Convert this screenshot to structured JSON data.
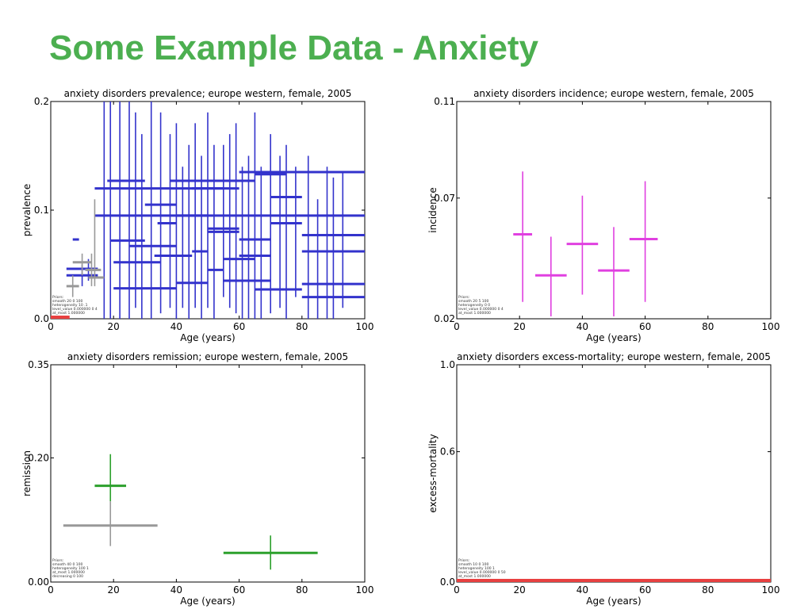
{
  "slide": {
    "title": "Some Example Data - Anxiety",
    "title_color": "#4caf50"
  },
  "chart_data": [
    {
      "type": "scatter",
      "title": "anxiety disorders prevalence; europe western, female, 2005",
      "xlabel": "Age (years)",
      "ylabel": "prevalence",
      "xlim": [
        0,
        100
      ],
      "ylim": [
        0,
        0.2
      ],
      "xticks": [
        "0",
        "20",
        "40",
        "60",
        "80",
        "100"
      ],
      "yticks": [
        "0.0",
        "0.1",
        "0.2"
      ],
      "grid": false,
      "priors_text": [
        "Priors:",
        "smooth 20 0 100",
        "heterogeneity 10 .1",
        "level_value 0.000000 0 4",
        "at_most 1.000000"
      ],
      "series": [
        {
          "color": "#3333cc",
          "points": [
            {
              "x": 17,
              "y": 0.12,
              "x0": 14,
              "x1": 60,
              "y0": 0,
              "y1": 0.2
            },
            {
              "x": 19,
              "y": 0.095,
              "x0": 14,
              "x1": 100,
              "y0": 0,
              "y1": 0.2
            },
            {
              "x": 22,
              "y": 0.072,
              "x0": 19,
              "x1": 30,
              "y0": 0,
              "y1": 0.2
            },
            {
              "x": 25,
              "y": 0.127,
              "x0": 18,
              "x1": 30,
              "y0": 0,
              "y1": 0.2
            },
            {
              "x": 27,
              "y": 0.052,
              "x0": 20,
              "x1": 35,
              "y0": 0.01,
              "y1": 0.19
            },
            {
              "x": 29,
              "y": 0.028,
              "x0": 20,
              "x1": 40,
              "y0": 0,
              "y1": 0.17
            },
            {
              "x": 32,
              "y": 0.067,
              "x0": 25,
              "x1": 40,
              "y0": 0,
              "y1": 0.2
            },
            {
              "x": 35,
              "y": 0.105,
              "x0": 30,
              "x1": 40,
              "y0": 0.005,
              "y1": 0.19
            },
            {
              "x": 38,
              "y": 0.088,
              "x0": 34,
              "x1": 40,
              "y0": 0.01,
              "y1": 0.17
            },
            {
              "x": 40,
              "y": 0.058,
              "x0": 33,
              "x1": 45,
              "y0": 0,
              "y1": 0.18
            },
            {
              "x": 42,
              "y": 0.127,
              "x0": 38,
              "x1": 60,
              "y0": 0.01,
              "y1": 0.14
            },
            {
              "x": 44,
              "y": 0.033,
              "x0": 40,
              "x1": 50,
              "y0": 0,
              "y1": 0.16
            },
            {
              "x": 46,
              "y": 0.095,
              "x0": 40,
              "x1": 50,
              "y0": 0.01,
              "y1": 0.18
            },
            {
              "x": 48,
              "y": 0.062,
              "x0": 45,
              "x1": 50,
              "y0": 0,
              "y1": 0.15
            },
            {
              "x": 50,
              "y": 0.12,
              "x0": 45,
              "x1": 55,
              "y0": 0.01,
              "y1": 0.19
            },
            {
              "x": 52,
              "y": 0.045,
              "x0": 50,
              "x1": 55,
              "y0": 0,
              "y1": 0.16
            },
            {
              "x": 55,
              "y": 0.083,
              "x0": 50,
              "x1": 60,
              "y0": 0.02,
              "y1": 0.16
            },
            {
              "x": 57,
              "y": 0.08,
              "x0": 50,
              "x1": 60,
              "y0": 0.01,
              "y1": 0.17
            },
            {
              "x": 59,
              "y": 0.127,
              "x0": 50,
              "x1": 65,
              "y0": 0.005,
              "y1": 0.18
            },
            {
              "x": 61,
              "y": 0.055,
              "x0": 55,
              "x1": 65,
              "y0": 0,
              "y1": 0.14
            },
            {
              "x": 63,
              "y": 0.035,
              "x0": 55,
              "x1": 70,
              "y0": 0,
              "y1": 0.15
            },
            {
              "x": 65,
              "y": 0.073,
              "x0": 60,
              "x1": 70,
              "y0": 0,
              "y1": 0.19
            },
            {
              "x": 67,
              "y": 0.058,
              "x0": 60,
              "x1": 70,
              "y0": 0,
              "y1": 0.14
            },
            {
              "x": 70,
              "y": 0.133,
              "x0": 65,
              "x1": 75,
              "y0": 0.005,
              "y1": 0.17
            },
            {
              "x": 73,
              "y": 0.027,
              "x0": 65,
              "x1": 80,
              "y0": 0.01,
              "y1": 0.15
            },
            {
              "x": 75,
              "y": 0.112,
              "x0": 70,
              "x1": 80,
              "y0": 0,
              "y1": 0.16
            },
            {
              "x": 78,
              "y": 0.088,
              "x0": 70,
              "x1": 80,
              "y0": 0.02,
              "y1": 0.14
            },
            {
              "x": 82,
              "y": 0.062,
              "x0": 80,
              "x1": 100,
              "y0": 0,
              "y1": 0.15
            },
            {
              "x": 85,
              "y": 0.02,
              "x0": 80,
              "x1": 100,
              "y0": 0,
              "y1": 0.11
            },
            {
              "x": 88,
              "y": 0.077,
              "x0": 80,
              "x1": 100,
              "y0": 0,
              "y1": 0.14
            },
            {
              "x": 90,
              "y": 0.032,
              "x0": 80,
              "x1": 100,
              "y0": 0,
              "y1": 0.13
            },
            {
              "x": 93,
              "y": 0.135,
              "x0": 60,
              "x1": 100,
              "y0": 0.01,
              "y1": 0.135
            },
            {
              "x": 10,
              "y": 0.04,
              "x0": 5,
              "x1": 15,
              "y0": 0.03,
              "y1": 0.05
            },
            {
              "x": 12,
              "y": 0.046,
              "x0": 5,
              "x1": 15,
              "y0": 0.035,
              "y1": 0.055
            },
            {
              "x": 8,
              "y": 0.073,
              "x0": 7,
              "x1": 9,
              "y0": 0.073,
              "y1": 0.073
            }
          ]
        },
        {
          "color": "#999999",
          "points": [
            {
              "x": 10,
              "y": 0.052,
              "x0": 7,
              "x1": 13,
              "y0": 0.04,
              "y1": 0.06
            },
            {
              "x": 14,
              "y": 0.038,
              "x0": 12,
              "x1": 17,
              "y0": 0.03,
              "y1": 0.11
            },
            {
              "x": 7,
              "y": 0.03,
              "x0": 5,
              "x1": 9,
              "y0": 0.02,
              "y1": 0.04
            },
            {
              "x": 13,
              "y": 0.045,
              "x0": 11,
              "x1": 16,
              "y0": 0.03,
              "y1": 0.06
            }
          ]
        }
      ],
      "highlight": {
        "x0": 0,
        "x1": 6,
        "color": "#e84040"
      }
    },
    {
      "type": "scatter",
      "title": "anxiety disorders incidence; europe western, female, 2005",
      "xlabel": "Age (years)",
      "ylabel": "incidence",
      "xlim": [
        0,
        100
      ],
      "ylim": [
        0.02,
        0.11
      ],
      "xticks": [
        "0",
        "20",
        "40",
        "60",
        "80",
        "100"
      ],
      "yticks": [
        "0.02",
        "0.07",
        "0.11"
      ],
      "grid": false,
      "priors_text": [
        "Priors:",
        "smooth 20 5 100",
        "heterogeneity 0 0",
        "level_value 0.000000 0 4",
        "at_most 1.000000"
      ],
      "series": [
        {
          "color": "#e040e0",
          "points": [
            {
              "x": 21,
              "y": 0.055,
              "x0": 18,
              "x1": 24,
              "y0": 0.027,
              "y1": 0.081
            },
            {
              "x": 30,
              "y": 0.038,
              "x0": 25,
              "x1": 35,
              "y0": 0.021,
              "y1": 0.054
            },
            {
              "x": 40,
              "y": 0.051,
              "x0": 35,
              "x1": 45,
              "y0": 0.03,
              "y1": 0.071
            },
            {
              "x": 50,
              "y": 0.04,
              "x0": 45,
              "x1": 55,
              "y0": 0.021,
              "y1": 0.058
            },
            {
              "x": 60,
              "y": 0.053,
              "x0": 55,
              "x1": 64,
              "y0": 0.027,
              "y1": 0.077
            }
          ]
        }
      ]
    },
    {
      "type": "scatter",
      "title": "anxiety disorders remission; europe western, female, 2005",
      "xlabel": "Age (years)",
      "ylabel": "remission",
      "xlim": [
        0,
        100
      ],
      "ylim": [
        0,
        0.35
      ],
      "xticks": [
        "0",
        "20",
        "40",
        "60",
        "80",
        "100"
      ],
      "yticks": [
        "0.00",
        "0.20",
        "0.35"
      ],
      "grid": false,
      "priors_text": [
        "Priors:",
        "smooth 40 0 100",
        "heterogeneity 100 1",
        "at_most 1.000000",
        "decreasing 0 100"
      ],
      "series": [
        {
          "color": "#2ca02c",
          "points": [
            {
              "x": 19,
              "y": 0.155,
              "x0": 14,
              "x1": 24,
              "y0": 0.13,
              "y1": 0.206
            },
            {
              "x": 70,
              "y": 0.047,
              "x0": 55,
              "x1": 85,
              "y0": 0.02,
              "y1": 0.075
            }
          ]
        },
        {
          "color": "#999999",
          "points": [
            {
              "x": 19,
              "y": 0.091,
              "x0": 4,
              "x1": 34,
              "y0": 0.058,
              "y1": 0.13
            }
          ]
        }
      ]
    },
    {
      "type": "scatter",
      "title": "anxiety disorders excess-mortality; europe western, female, 2005",
      "xlabel": "Age (years)",
      "ylabel": "excess-mortality",
      "xlim": [
        0,
        100
      ],
      "ylim": [
        0,
        1.0
      ],
      "xticks": [
        "0",
        "20",
        "40",
        "60",
        "80",
        "100"
      ],
      "yticks": [
        "0.0",
        "0.6",
        "1.0"
      ],
      "grid": false,
      "priors_text": [
        "Priors:",
        "smooth 10 0 100",
        "heterogeneity 100 1",
        "level_value 0.000000 0 50",
        "at_most 1.000000"
      ],
      "series": [],
      "highlight": {
        "x0": 0,
        "x1": 100,
        "color": "#e84040"
      }
    }
  ]
}
